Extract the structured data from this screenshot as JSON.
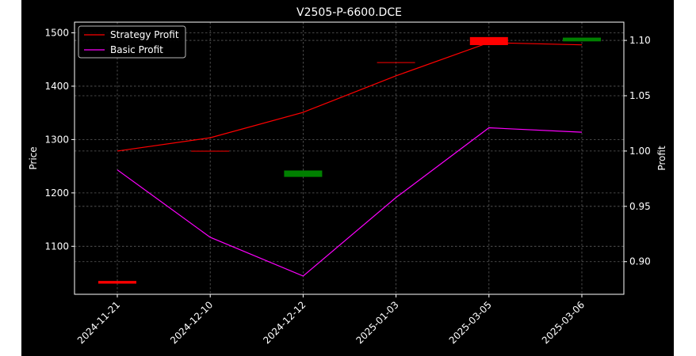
{
  "chart_data": {
    "type": "line",
    "title": "V2505-P-6600.DCE",
    "xlabel": "",
    "ylabel": "Price",
    "ylabel_right": "Profit",
    "categories": [
      "2024-11-21",
      "2024-12-10",
      "2024-12-12",
      "2025-01-03",
      "2025-03-05",
      "2025-03-06"
    ],
    "ylim": [
      1010,
      1520
    ],
    "yticks": [
      1100,
      1200,
      1300,
      1400,
      1500
    ],
    "ylim_right": [
      0.8705,
      1.1165
    ],
    "yticks_right": [
      "0.90",
      "0.95",
      "1.00",
      "1.05",
      "1.10"
    ],
    "grid": true,
    "legend": "top-left",
    "background": "#000000",
    "series": [
      {
        "name": "Strategy Profit",
        "axis": "right",
        "color": "#ff0000",
        "values": [
          1.0,
          1.012,
          1.035,
          1.068,
          1.098,
          1.096
        ]
      },
      {
        "name": "Basic Profit",
        "axis": "right",
        "color": "#ff00ff",
        "values": [
          0.983,
          0.922,
          0.887,
          0.958,
          1.021,
          1.017
        ]
      }
    ],
    "candles": [
      {
        "x": "2024-11-21",
        "open": 1035,
        "close": 1030,
        "color": "#ff0000"
      },
      {
        "x": "2024-12-10",
        "open": 1279,
        "close": 1278,
        "color": "#ff0000"
      },
      {
        "x": "2024-12-12",
        "open": 1230,
        "close": 1242,
        "color": "#008000"
      },
      {
        "x": "2025-01-03",
        "open": 1445,
        "close": 1444,
        "color": "#ff0000"
      },
      {
        "x": "2025-03-05",
        "open": 1492,
        "close": 1477,
        "color": "#ff0000"
      },
      {
        "x": "2025-03-06",
        "open": 1484,
        "close": 1491,
        "color": "#008000"
      }
    ]
  }
}
